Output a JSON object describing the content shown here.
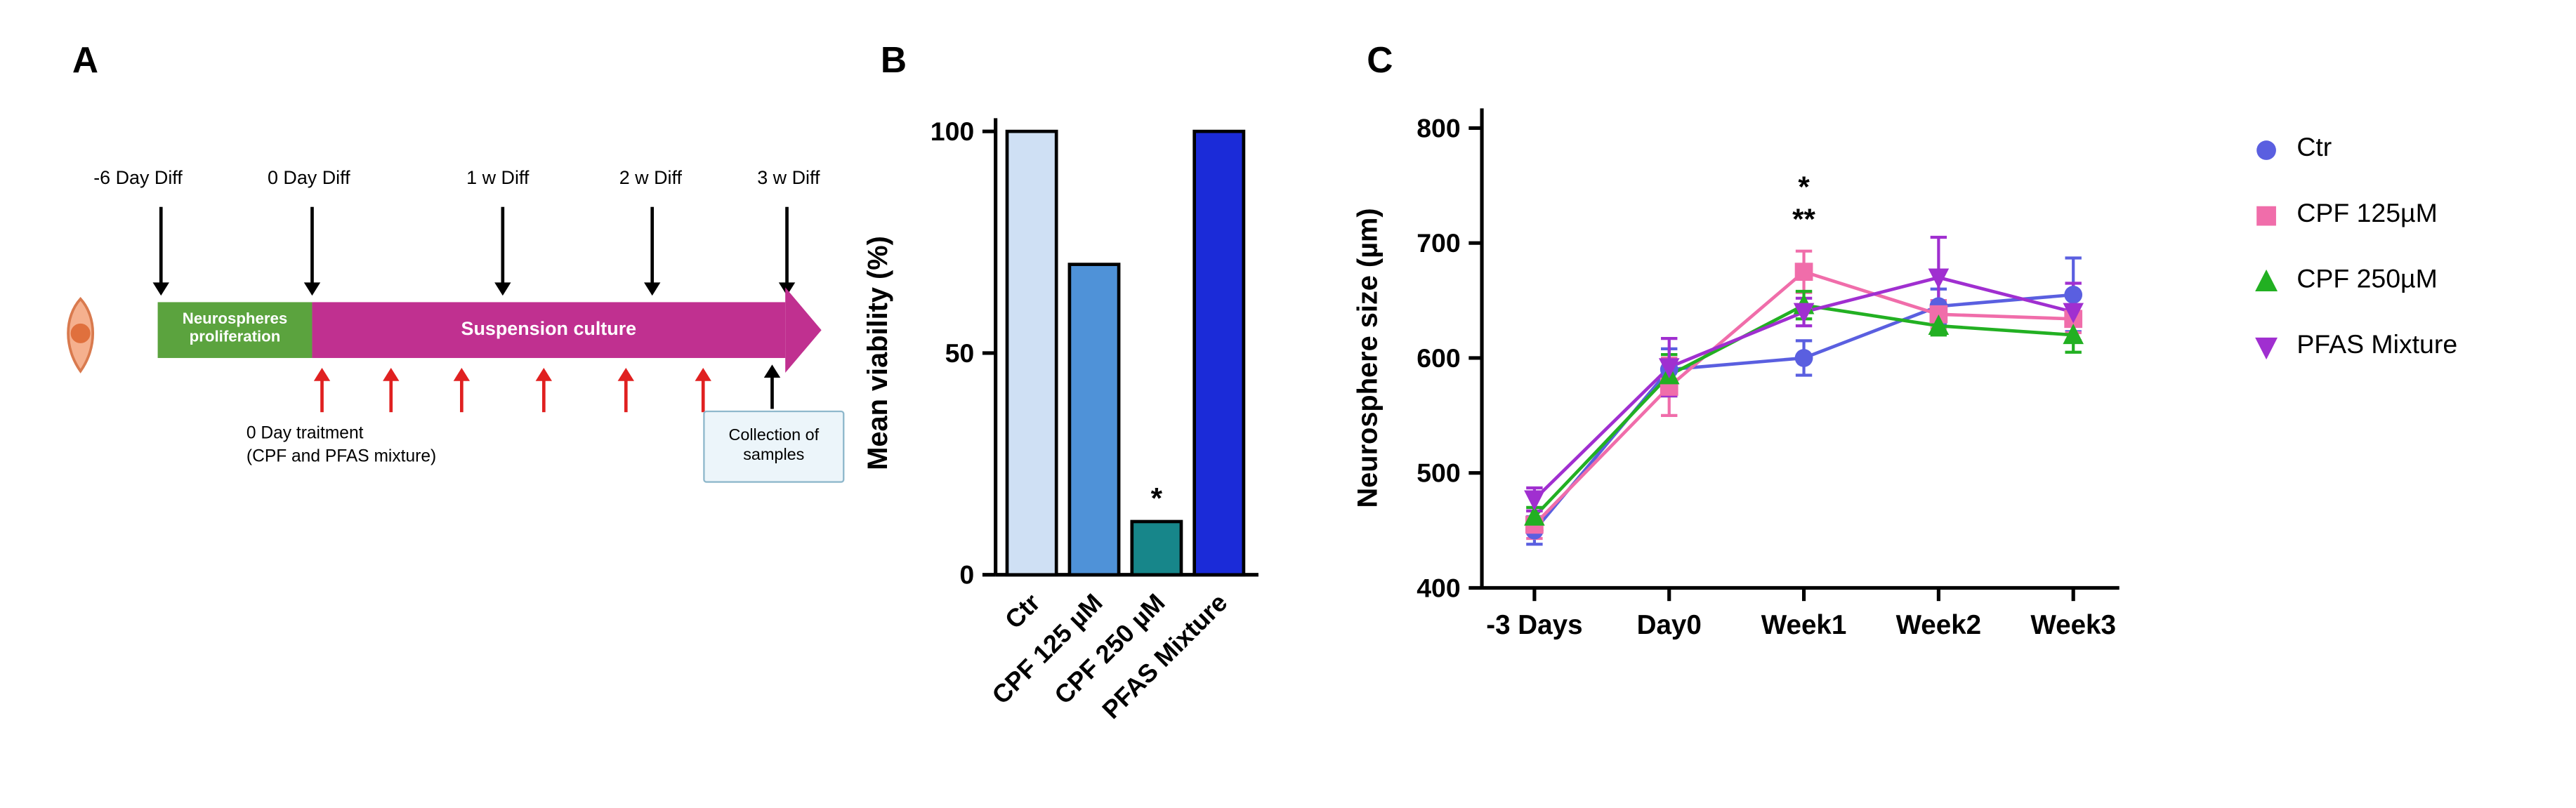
{
  "figure": {
    "background": "#ffffff"
  },
  "panels": {
    "a": {
      "label": "A",
      "timeline_labels": [
        "-6 Day Diff",
        "0 Day Diff",
        "1 w Diff",
        "2 w Diff",
        "3 w Diff"
      ],
      "proliferation_label": "Neurospheres\nproliferation",
      "suspension_label": "Suspension culture",
      "treatment_label": "0 Day traitment\n(CPF and PFAS mixture)",
      "collection_label": "Collection of\nsamples",
      "colors": {
        "proliferation_bar": "#5ba33e",
        "suspension_bar": "#c03090",
        "treatment_arrows": "#e02020",
        "timeline_arrows": "#000000"
      }
    },
    "b": {
      "label": "B"
    },
    "c": {
      "label": "C"
    }
  },
  "chart_data": [
    {
      "type": "bar",
      "panel": "B",
      "ylabel": "Mean viability (%)",
      "categories": [
        "Ctr",
        "CPF 125 µM",
        "CPF 250 µM",
        "PFAS Mixture"
      ],
      "values": [
        100,
        70,
        12,
        100
      ],
      "bar_colors": [
        "#cfe0f4",
        "#4f92d8",
        "#17868a",
        "#1b2bd8"
      ],
      "ylim": [
        0,
        100
      ],
      "yticks": [
        0,
        50,
        100
      ],
      "grid": false,
      "annotations": [
        {
          "category": "CPF 250 µM",
          "text": "*"
        }
      ]
    },
    {
      "type": "line",
      "panel": "C",
      "ylabel": "Neurosphere size (µm)",
      "categories": [
        "-3 Days",
        "Day0",
        "Week1",
        "Week2",
        "Week3"
      ],
      "ylim": [
        400,
        800
      ],
      "yticks": [
        400,
        500,
        600,
        700,
        800
      ],
      "grid": false,
      "legend_position": "right",
      "series": [
        {
          "name": "Ctr",
          "marker": "circle",
          "color": "#5a5fe0",
          "values": [
            450,
            590,
            600,
            645,
            655
          ],
          "errors": [
            12,
            18,
            15,
            15,
            32
          ]
        },
        {
          "name": "CPF 125µM",
          "marker": "square",
          "color": "#f06daa",
          "values": [
            455,
            575,
            675,
            638,
            634
          ],
          "errors": [
            12,
            25,
            18,
            12,
            12
          ]
        },
        {
          "name": "CPF 250µM",
          "marker": "triangle-up",
          "color": "#22b022",
          "values": [
            462,
            585,
            646,
            628,
            620
          ],
          "errors": [
            8,
            18,
            12,
            8,
            15
          ]
        },
        {
          "name": "PFAS Mixture",
          "marker": "triangle-down",
          "color": "#a02fd0",
          "values": [
            477,
            592,
            640,
            670,
            640
          ],
          "errors": [
            10,
            25,
            12,
            35,
            25
          ]
        }
      ],
      "annotations": [
        {
          "x": "Week1",
          "y": 740,
          "text": "*",
          "color": "#22b022"
        },
        {
          "x": "Week1",
          "y": 712,
          "text": "**",
          "color": "#f06daa"
        }
      ]
    }
  ]
}
